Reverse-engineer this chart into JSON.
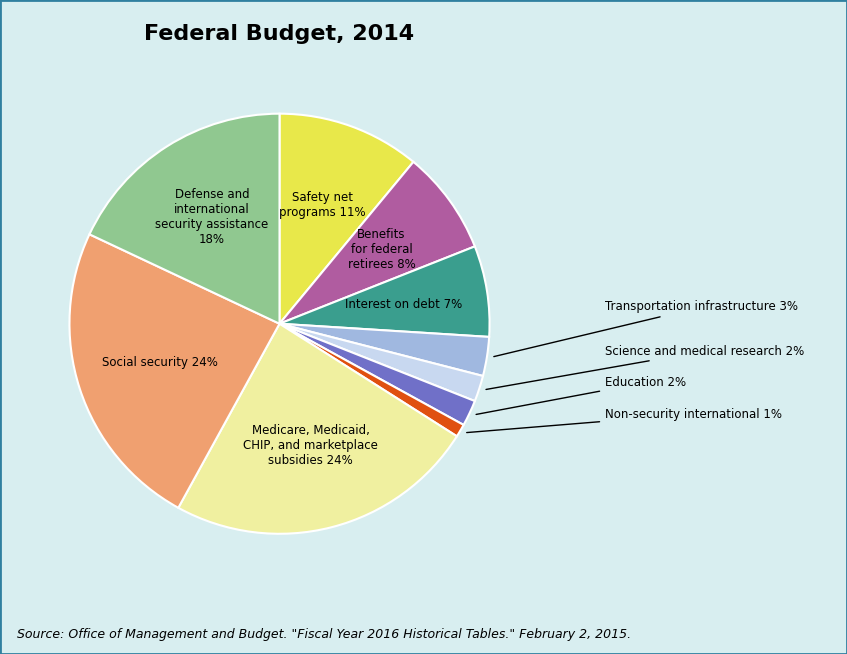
{
  "title": "Federal Budget, 2014",
  "source": "Source: Office of Management and Budget. \"Fiscal Year 2016 Historical Tables.\" February 2, 2015.",
  "slices": [
    {
      "label": "Safety net\nprograms 11%",
      "value": 11,
      "color": "#e8e84a",
      "text_inside": true
    },
    {
      "label": "Benefits\nfor federal\nretirees 8%",
      "value": 8,
      "color": "#b05ca0",
      "text_inside": true
    },
    {
      "label": "Interest on debt 7%",
      "value": 7,
      "color": "#3a9e8e",
      "text_inside": true
    },
    {
      "label": "Transportation infrastructure 3%",
      "value": 3,
      "color": "#a0b8e0",
      "text_inside": false
    },
    {
      "label": "Science and medical research 2%",
      "value": 2,
      "color": "#c8d8f0",
      "text_inside": false
    },
    {
      "label": "Education 2%",
      "value": 2,
      "color": "#7070c8",
      "text_inside": false
    },
    {
      "label": "Non-security international 1%",
      "value": 1,
      "color": "#e05010",
      "text_inside": false
    },
    {
      "label": "Medicare, Medicaid,\nCHIP, and marketplace\nsubsidies 24%",
      "value": 24,
      "color": "#f0f0a0",
      "text_inside": true
    },
    {
      "label": "Social security 24%",
      "value": 24,
      "color": "#f0a070",
      "text_inside": true
    },
    {
      "label": "Defense and\ninternational\nsecurity assistance\n18%",
      "value": 18,
      "color": "#90c890",
      "text_inside": true
    }
  ],
  "background_color": "#d8eef0",
  "title_fontsize": 16,
  "source_fontsize": 9
}
